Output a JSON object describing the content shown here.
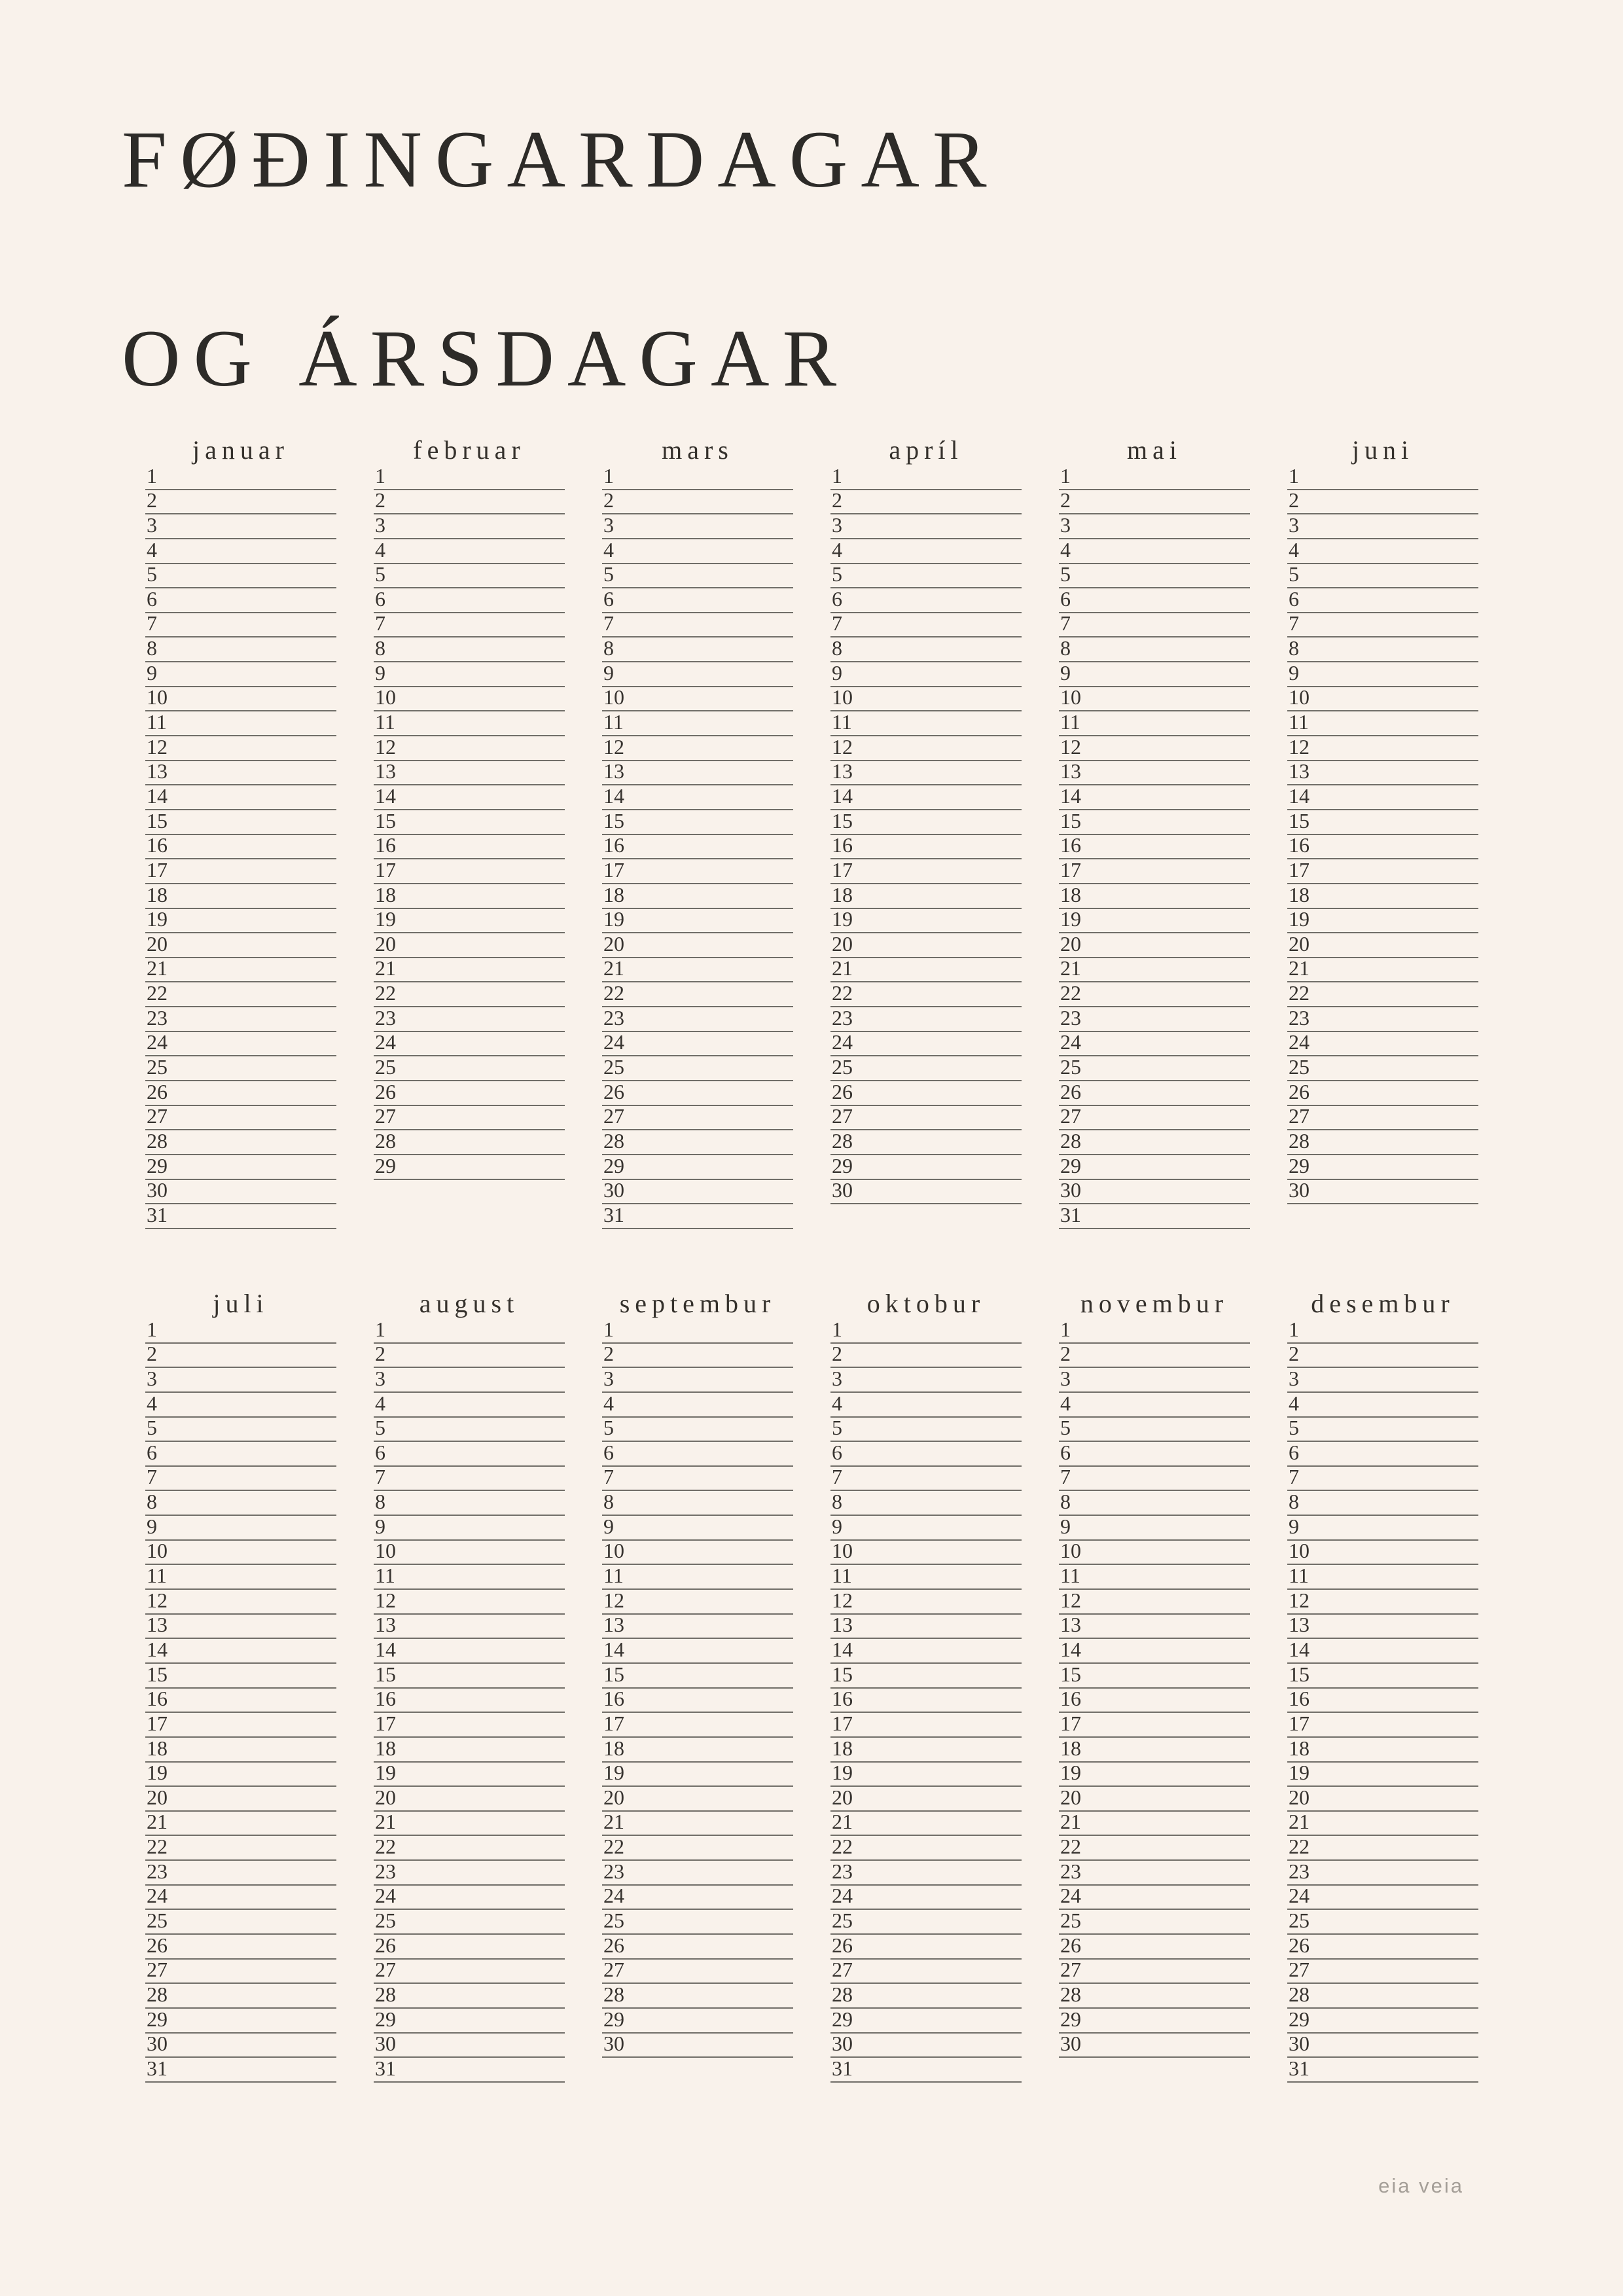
{
  "poster": {
    "title_line1": "FØÐINGARDAGAR",
    "title_line2": "OG ÁRSDAGAR",
    "signature": "eia veia",
    "colors": {
      "background": "#f9f2eb",
      "ink": "#2d2b28",
      "line": "#716e68",
      "signature": "#a49e97"
    }
  },
  "calendar": {
    "sections": [
      {
        "months": [
          {
            "name": "januar",
            "days": 31,
            "day_numbers": [
              1,
              2,
              3,
              4,
              5,
              6,
              7,
              8,
              9,
              10,
              11,
              12,
              13,
              14,
              15,
              16,
              17,
              18,
              19,
              20,
              21,
              22,
              23,
              24,
              25,
              26,
              27,
              28,
              29,
              30,
              31
            ]
          },
          {
            "name": "februar",
            "days": 29,
            "day_numbers": [
              1,
              2,
              3,
              4,
              5,
              6,
              7,
              8,
              9,
              10,
              11,
              12,
              13,
              14,
              15,
              16,
              17,
              18,
              19,
              20,
              21,
              22,
              23,
              24,
              25,
              26,
              27,
              28,
              29
            ]
          },
          {
            "name": "mars",
            "days": 31,
            "day_numbers": [
              1,
              2,
              3,
              4,
              5,
              6,
              7,
              8,
              9,
              10,
              11,
              12,
              13,
              14,
              15,
              16,
              17,
              18,
              19,
              20,
              21,
              22,
              23,
              24,
              25,
              26,
              27,
              28,
              29,
              30,
              31
            ]
          },
          {
            "name": "apríl",
            "days": 30,
            "day_numbers": [
              1,
              2,
              3,
              4,
              5,
              6,
              7,
              8,
              9,
              10,
              11,
              12,
              13,
              14,
              15,
              16,
              17,
              18,
              19,
              20,
              21,
              22,
              23,
              24,
              25,
              26,
              27,
              28,
              29,
              30
            ]
          },
          {
            "name": "mai",
            "days": 31,
            "day_numbers": [
              1,
              2,
              3,
              4,
              5,
              6,
              7,
              8,
              9,
              10,
              11,
              12,
              13,
              14,
              15,
              16,
              17,
              18,
              19,
              20,
              21,
              22,
              23,
              24,
              25,
              26,
              27,
              28,
              29,
              30,
              31
            ]
          },
          {
            "name": "juni",
            "days": 30,
            "day_numbers": [
              1,
              2,
              3,
              4,
              5,
              6,
              7,
              8,
              9,
              10,
              11,
              12,
              13,
              14,
              15,
              16,
              17,
              18,
              19,
              20,
              21,
              22,
              23,
              24,
              25,
              26,
              27,
              28,
              29,
              30
            ]
          }
        ]
      },
      {
        "months": [
          {
            "name": "juli",
            "days": 31,
            "day_numbers": [
              1,
              2,
              3,
              4,
              5,
              6,
              7,
              8,
              9,
              10,
              11,
              12,
              13,
              14,
              15,
              16,
              17,
              18,
              19,
              20,
              21,
              22,
              23,
              24,
              25,
              26,
              27,
              28,
              29,
              30,
              31
            ]
          },
          {
            "name": "august",
            "days": 31,
            "day_numbers": [
              1,
              2,
              3,
              4,
              5,
              6,
              7,
              8,
              9,
              10,
              11,
              12,
              13,
              14,
              15,
              16,
              17,
              18,
              19,
              20,
              21,
              22,
              23,
              24,
              25,
              26,
              27,
              28,
              29,
              30,
              31
            ]
          },
          {
            "name": "septembur",
            "days": 30,
            "day_numbers": [
              1,
              2,
              3,
              4,
              5,
              6,
              7,
              8,
              9,
              10,
              11,
              12,
              13,
              14,
              15,
              16,
              17,
              18,
              19,
              20,
              21,
              22,
              23,
              24,
              25,
              26,
              27,
              28,
              29,
              30
            ]
          },
          {
            "name": "oktobur",
            "days": 31,
            "day_numbers": [
              1,
              2,
              3,
              4,
              5,
              6,
              7,
              8,
              9,
              10,
              11,
              12,
              13,
              14,
              15,
              16,
              17,
              18,
              19,
              20,
              21,
              22,
              23,
              24,
              25,
              26,
              27,
              28,
              29,
              30,
              31
            ]
          },
          {
            "name": "novembur",
            "days": 30,
            "day_numbers": [
              1,
              2,
              3,
              4,
              5,
              6,
              7,
              8,
              9,
              10,
              11,
              12,
              13,
              14,
              15,
              16,
              17,
              18,
              19,
              20,
              21,
              22,
              23,
              24,
              25,
              26,
              27,
              28,
              29,
              30
            ]
          },
          {
            "name": "desembur",
            "days": 31,
            "day_numbers": [
              1,
              2,
              3,
              4,
              5,
              6,
              7,
              8,
              9,
              10,
              11,
              12,
              13,
              14,
              15,
              16,
              17,
              18,
              19,
              20,
              21,
              22,
              23,
              24,
              25,
              26,
              27,
              28,
              29,
              30,
              31
            ]
          }
        ]
      }
    ]
  }
}
